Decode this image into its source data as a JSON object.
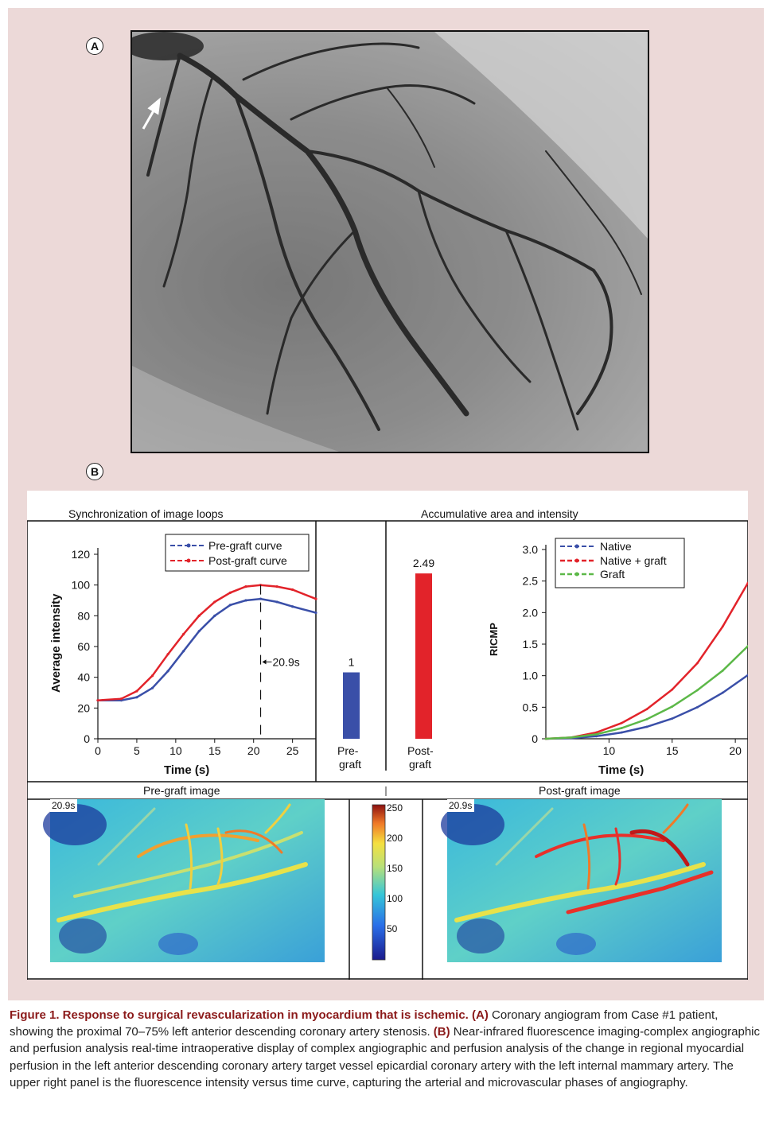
{
  "figure": {
    "panel_a_label": "A",
    "panel_b_label": "B",
    "caption": {
      "lead": "Figure 1. Response to surgical revascularization in myocardium that is ischemic.",
      "a_tag": "(A)",
      "a_text": "Coronary angiogram from Case #1 patient, showing the proximal 70–75% left anterior descending coronary artery stenosis.",
      "b_tag": "(B)",
      "b_text": "Near-infrared fluorescence imaging-complex angiographic and perfusion analysis real-time intraoperative display of complex angiographic and perfusion analysis of the change in regional myocardial perfusion in the left anterior descending coronary artery target vessel epicardial coronary artery with the left internal mammary artery. The upper right panel is the fluorescence intensity versus time curve, capturing the arterial and microvascular phases of angiography."
    }
  },
  "panel_b": {
    "sync_title": "Synchronization of image loops",
    "accum_title": "Accumulative area and intensity",
    "pre_image_title": "Pre-graft image",
    "post_image_title": "Post-graft image",
    "pre_time_stamp": "20.9s",
    "post_time_stamp": "20.9s",
    "colorbar_ticks": [
      "250",
      "200",
      "150",
      "100",
      "50"
    ],
    "colors": {
      "pre": "#3a4fa8",
      "post": "#e2232a",
      "graft": "#5cb848"
    }
  },
  "chart_data": [
    {
      "type": "line",
      "xlabel": "Time (s)",
      "ylabel": "Average intensity",
      "xlim": [
        0,
        28
      ],
      "ylim": [
        0,
        120
      ],
      "xticks": [
        "0",
        "5",
        "10",
        "15",
        "20",
        "25"
      ],
      "yticks": [
        "0",
        "20",
        "40",
        "60",
        "80",
        "100",
        "120"
      ],
      "legend": "top-right",
      "annotation": "20.9s",
      "series": [
        {
          "name": "Pre-graft curve",
          "x": [
            0,
            3,
            5,
            7,
            9,
            11,
            13,
            15,
            17,
            19,
            20.9,
            23,
            25,
            28
          ],
          "y": [
            25,
            25,
            27,
            33,
            44,
            57,
            70,
            80,
            87,
            90,
            91,
            89,
            86,
            82
          ]
        },
        {
          "name": "Post-graft curve",
          "x": [
            0,
            3,
            5,
            7,
            9,
            11,
            13,
            15,
            17,
            19,
            20.9,
            23,
            25,
            28
          ],
          "y": [
            25,
            26,
            31,
            41,
            55,
            68,
            80,
            89,
            95,
            99,
            100,
            99,
            97,
            91
          ]
        }
      ]
    },
    {
      "type": "bar",
      "categories": [
        "Pre-graft",
        "Post-graft"
      ],
      "values": [
        1,
        2.49
      ],
      "value_labels": [
        "1",
        "2.49"
      ]
    },
    {
      "type": "line",
      "xlabel": "Time (s)",
      "ylabel": "RICMP",
      "xlim": [
        5,
        21
      ],
      "ylim": [
        0,
        3.0
      ],
      "xticks": [
        "10",
        "15",
        "20"
      ],
      "yticks": [
        "0",
        "0.5",
        "1.0",
        "1.5",
        "2.0",
        "2.5",
        "3.0"
      ],
      "legend": "top-left",
      "series": [
        {
          "name": "Native",
          "x": [
            5,
            7,
            9,
            11,
            13,
            15,
            17,
            19,
            21
          ],
          "y": [
            0,
            0.01,
            0.04,
            0.1,
            0.19,
            0.32,
            0.5,
            0.73,
            1.01
          ]
        },
        {
          "name": "Native + graft",
          "x": [
            5,
            7,
            9,
            11,
            13,
            15,
            17,
            19,
            21
          ],
          "y": [
            0,
            0.02,
            0.1,
            0.25,
            0.47,
            0.78,
            1.2,
            1.78,
            2.47
          ]
        },
        {
          "name": "Graft",
          "x": [
            5,
            7,
            9,
            11,
            13,
            15,
            17,
            19,
            21
          ],
          "y": [
            0,
            0.02,
            0.07,
            0.17,
            0.31,
            0.51,
            0.77,
            1.08,
            1.47
          ]
        }
      ]
    }
  ]
}
